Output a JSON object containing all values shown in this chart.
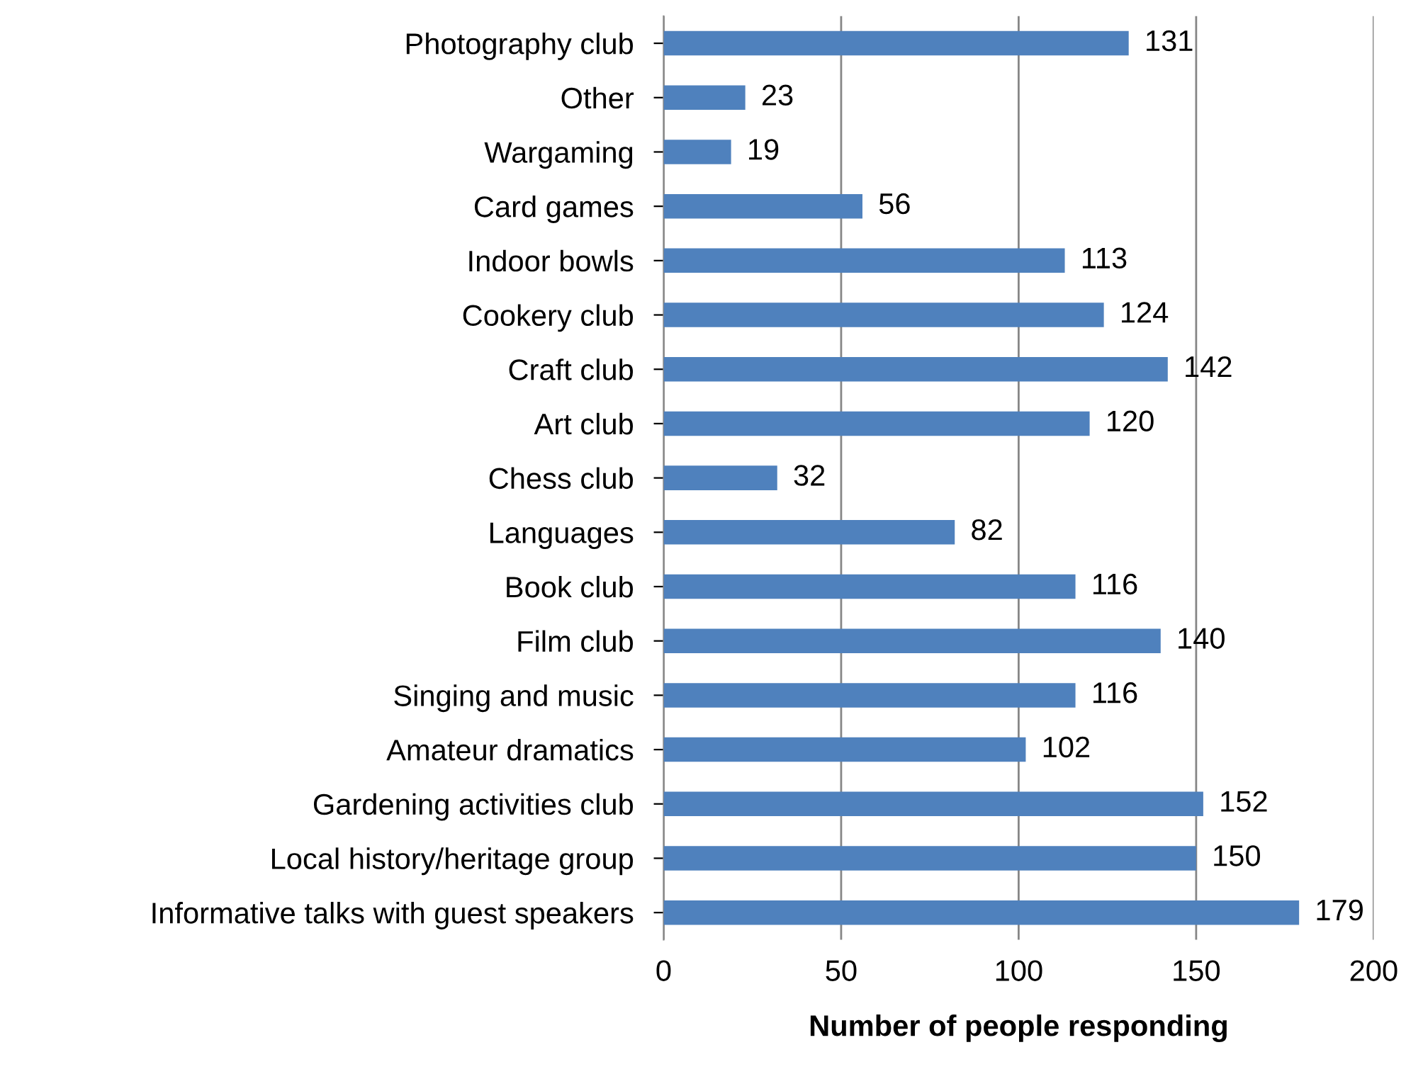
{
  "chart_data": {
    "type": "bar",
    "orientation": "horizontal",
    "xlabel": "Number of people responding",
    "categories": [
      "Photography club",
      "Other",
      "Wargaming",
      "Card games",
      "Indoor bowls",
      "Cookery club",
      "Craft club",
      "Art club",
      "Chess club",
      "Languages",
      "Book club",
      "Film club",
      "Singing and music",
      "Amateur dramatics",
      "Gardening activities club",
      "Local history/heritage group",
      "Informative talks with guest speakers"
    ],
    "values": [
      131,
      23,
      19,
      56,
      113,
      124,
      142,
      120,
      32,
      82,
      116,
      140,
      116,
      102,
      152,
      150,
      179
    ],
    "color": "#4f81bd",
    "xlim": [
      0,
      200
    ],
    "xticks": [
      0,
      50,
      100,
      150,
      200
    ],
    "grid": "x",
    "data_labels": true
  }
}
